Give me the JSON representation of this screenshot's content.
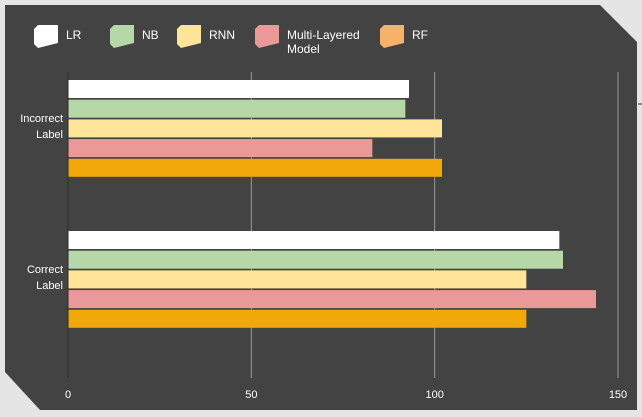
{
  "chart_data": {
    "type": "bar",
    "orientation": "horizontal",
    "categories": [
      [
        "Incorrect",
        "Label"
      ],
      [
        "Correct",
        "Label"
      ]
    ],
    "series": [
      {
        "name": "LR",
        "color": "#ffffff",
        "values": [
          93,
          134
        ]
      },
      {
        "name": "NB",
        "color": "#b6d7a8",
        "values": [
          92,
          135
        ]
      },
      {
        "name": "RNN",
        "color": "#ffe599",
        "values": [
          102,
          125
        ]
      },
      {
        "name": "Multi-Layered Model",
        "legend_lines": [
          "Multi-Layered",
          "Model"
        ],
        "color": "#ea9999",
        "values": [
          83,
          144
        ]
      },
      {
        "name": "RF",
        "color": "#f6b26b",
        "bar_color": "#f1a80a",
        "values": [
          102,
          125
        ]
      }
    ],
    "xlim": [
      0,
      150
    ],
    "xticks": [
      0,
      50,
      100,
      150
    ],
    "grid": true,
    "legend_position": "top",
    "title": "",
    "xlabel": "",
    "ylabel": "",
    "colors": {
      "panel": "#434343",
      "page": "#e5e5e5",
      "grid": "#9a9a9a",
      "text": "#ffffff"
    }
  }
}
